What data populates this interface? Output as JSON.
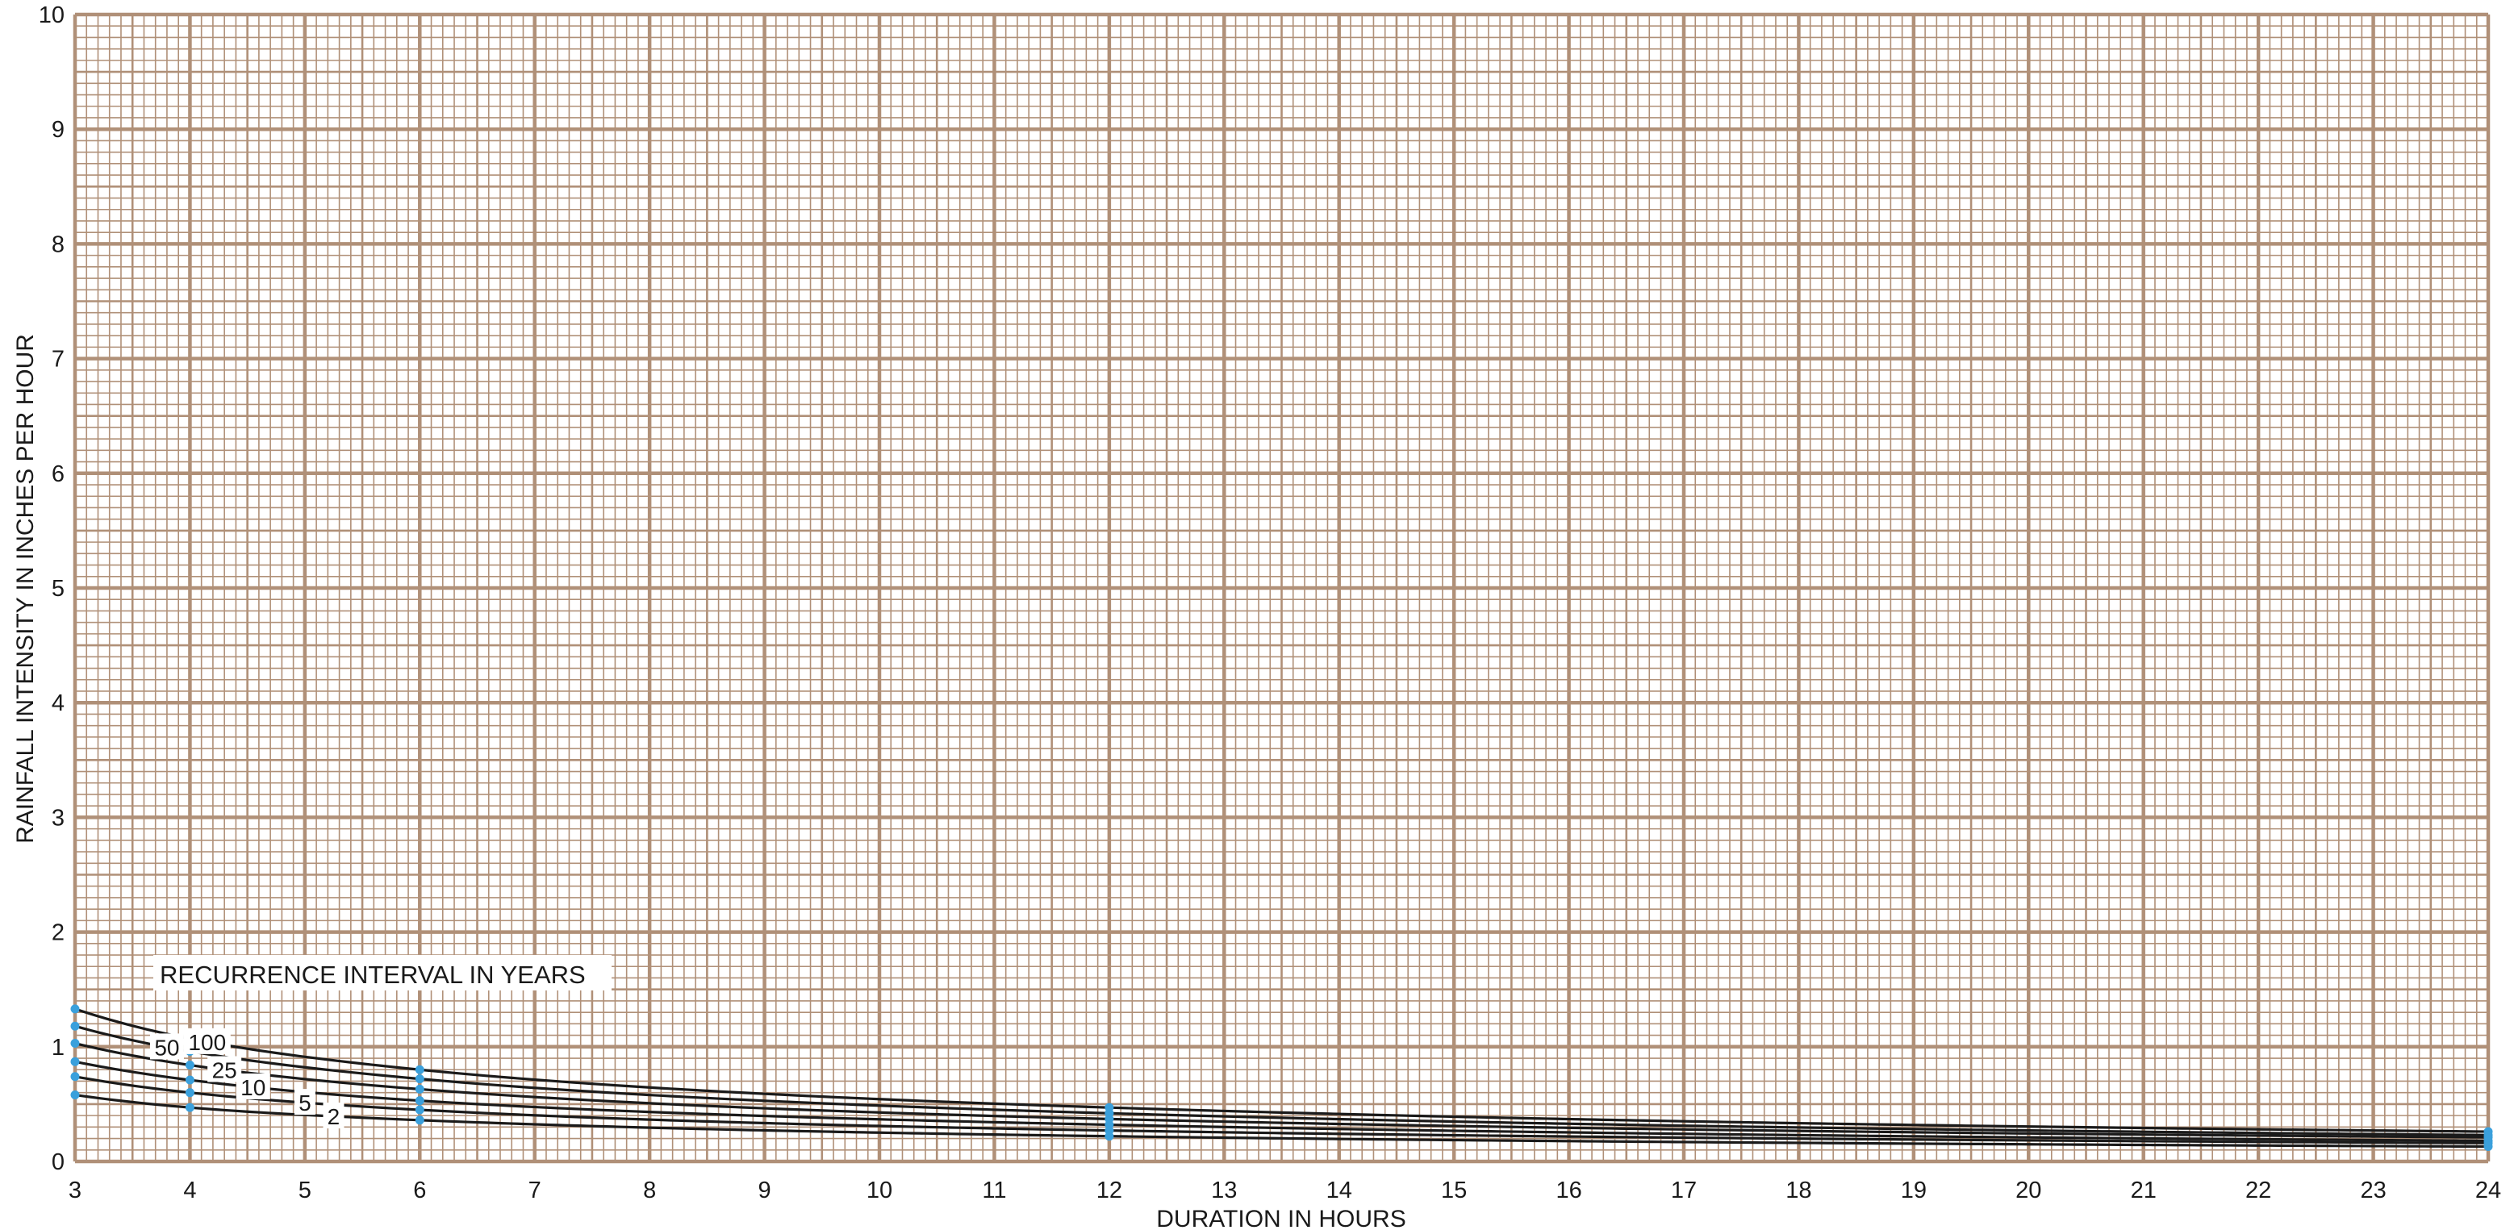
{
  "chart_data": {
    "type": "line",
    "title": "",
    "xlabel": "DURATION IN HOURS",
    "ylabel": "RAINFALL INTENSITY IN INCHES PER HOUR",
    "xlim": [
      3,
      24
    ],
    "ylim": [
      0,
      10
    ],
    "x_ticks": [
      "3",
      "4",
      "5",
      "6",
      "7",
      "8",
      "9",
      "10",
      "11",
      "12",
      "13",
      "14",
      "15",
      "16",
      "17",
      "18",
      "19",
      "20",
      "21",
      "22",
      "23",
      "24"
    ],
    "y_ticks": [
      "0",
      "1",
      "2",
      "3",
      "4",
      "5",
      "6",
      "7",
      "8",
      "9",
      "10"
    ],
    "grid": true,
    "grid_color": "#b09078",
    "line_color": "#1a1a1a",
    "point_color": "#3aa0dc",
    "legend_title": "RECURRENCE INTERVAL IN YEARS",
    "x": [
      3,
      4,
      6,
      12,
      24
    ],
    "series": [
      {
        "name": "100",
        "values": [
          1.33,
          1.07,
          0.8,
          0.47,
          0.26
        ]
      },
      {
        "name": "50",
        "values": [
          1.18,
          0.96,
          0.72,
          0.42,
          0.23
        ]
      },
      {
        "name": "25",
        "values": [
          1.03,
          0.84,
          0.63,
          0.37,
          0.21
        ]
      },
      {
        "name": "10",
        "values": [
          0.87,
          0.71,
          0.53,
          0.32,
          0.18
        ]
      },
      {
        "name": "5",
        "values": [
          0.74,
          0.6,
          0.45,
          0.27,
          0.16
        ]
      },
      {
        "name": "2",
        "values": [
          0.58,
          0.47,
          0.36,
          0.22,
          0.13
        ]
      }
    ],
    "series_label_x": [
      4.15,
      3.8,
      4.3,
      4.55,
      5.0,
      5.25
    ]
  }
}
